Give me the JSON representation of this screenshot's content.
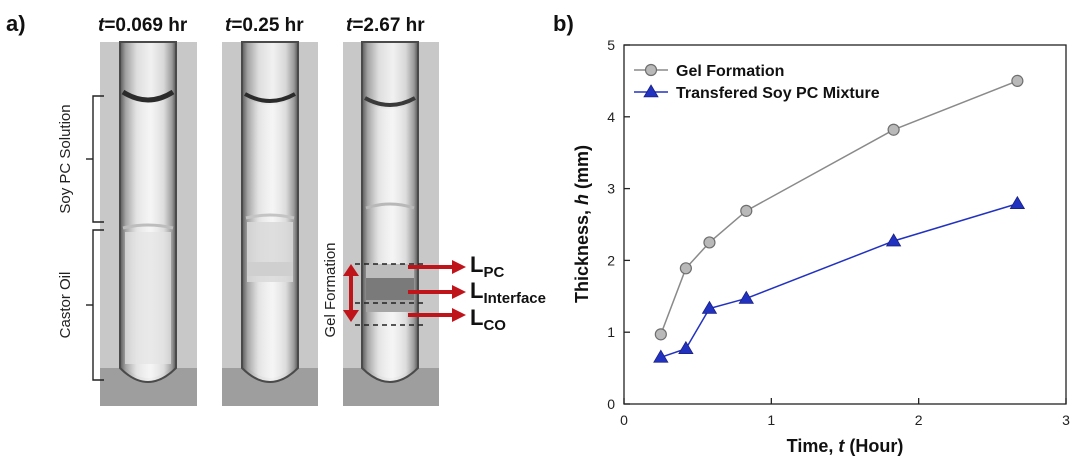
{
  "panel_a": {
    "label": "a)",
    "time_prefix": "t",
    "tubes": [
      {
        "time": "=0.069 hr"
      },
      {
        "time": "=0.25 hr"
      },
      {
        "time": "=2.67 hr"
      }
    ],
    "bracket_labels": {
      "upper": "Soy PC Solution",
      "lower": "Castor Oil"
    },
    "gel_formation_label": "Gel Formation",
    "layer_labels": [
      {
        "main": "L",
        "sub": "PC"
      },
      {
        "main": "L",
        "sub": "Interface"
      },
      {
        "main": "L",
        "sub": "CO"
      }
    ],
    "colors": {
      "arrow": "#c0141b",
      "dashed_line": "#222222"
    }
  },
  "panel_b": {
    "label": "b)",
    "chart_data": {
      "type": "line",
      "xlabel_prefix": "Time, ",
      "xlabel_var": "t",
      "xlabel_suffix": " (Hour)",
      "ylabel_prefix": "Thickness, ",
      "ylabel_var": "h",
      "ylabel_suffix": " (mm)",
      "xlim": [
        0,
        3
      ],
      "ylim": [
        0,
        5
      ],
      "xticks": [
        0,
        1,
        2,
        3
      ],
      "yticks": [
        0,
        1,
        2,
        3,
        4,
        5
      ],
      "legend_position": "top-left",
      "grid": false,
      "series": [
        {
          "name": "Gel Formation",
          "marker": "circle",
          "color": "#8a8a8a",
          "x": [
            0.25,
            0.42,
            0.58,
            0.83,
            1.83,
            2.67
          ],
          "y": [
            0.97,
            1.89,
            2.25,
            2.69,
            3.82,
            4.5
          ]
        },
        {
          "name": "Transfered Soy PC Mixture",
          "marker": "triangle",
          "color": "#2232c0",
          "x": [
            0.25,
            0.42,
            0.58,
            0.83,
            1.83,
            2.67
          ],
          "y": [
            0.65,
            0.77,
            1.33,
            1.47,
            2.27,
            2.79
          ]
        }
      ]
    }
  }
}
